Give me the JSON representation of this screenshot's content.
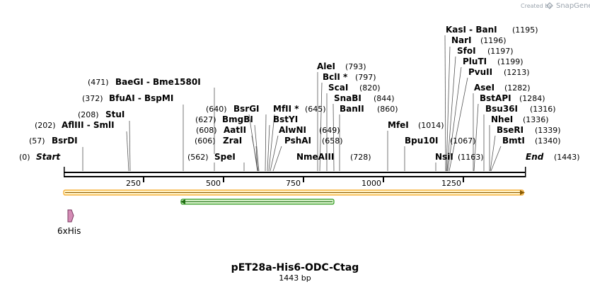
{
  "credit": {
    "created_by": "Created by",
    "brand": "SnapGene"
  },
  "map": {
    "name": "pET28a-His6-ODC-Ctag",
    "length_label": "1443 bp",
    "total_bp": 1443,
    "start_label": "Start",
    "start_pos": "(0)",
    "end_label": "End",
    "end_pos": "(1443)",
    "ticks": [
      "250",
      "500",
      "750",
      "1000",
      "1250"
    ]
  },
  "sites": [
    {
      "name": "BsrDI",
      "pos": "(57)",
      "bp": 57
    },
    {
      "name": "AflIII  - SmlI",
      "pos": "(202)",
      "bp": 202
    },
    {
      "name": "StuI",
      "pos": "(208)",
      "bp": 208
    },
    {
      "name": "BfuAI  - BspMI",
      "pos": "(372)",
      "bp": 372
    },
    {
      "name": "BaeGI  - Bme1580I",
      "pos": "(471)",
      "bp": 471
    },
    {
      "name": "SpeI",
      "pos": "(562)",
      "bp": 562
    },
    {
      "name": "ZraI",
      "pos": "(606)",
      "bp": 606
    },
    {
      "name": "AatII",
      "pos": "(608)",
      "bp": 608
    },
    {
      "name": "BmgBI",
      "pos": "(627)",
      "bp": 627
    },
    {
      "name": "BsrGI",
      "pos": "(640)",
      "bp": 640
    },
    {
      "name": "MfII *",
      "pos": "(645)",
      "bp": 645
    },
    {
      "name": "BstYI",
      "pos": "",
      "bp": 645
    },
    {
      "name": "AlwNI",
      "pos": "(649)",
      "bp": 649
    },
    {
      "name": "PshAI",
      "pos": "(658)",
      "bp": 658
    },
    {
      "name": "NmeAIII",
      "pos": "(728)",
      "bp": 728
    },
    {
      "name": "AleI",
      "pos": "(793)",
      "bp": 793
    },
    {
      "name": "BclI *",
      "pos": "(797)",
      "bp": 797
    },
    {
      "name": "ScaI",
      "pos": "(820)",
      "bp": 820
    },
    {
      "name": "SnaBI",
      "pos": "(844)",
      "bp": 844
    },
    {
      "name": "BanII",
      "pos": "(860)",
      "bp": 860
    },
    {
      "name": "MfeI",
      "pos": "(1014)",
      "bp": 1014
    },
    {
      "name": "Bpu10I",
      "pos": "(1067)",
      "bp": 1067
    },
    {
      "name": "NsiI",
      "pos": "(1163)",
      "bp": 1163
    },
    {
      "name": "KasI  - BanI",
      "pos": "(1195)",
      "bp": 1195
    },
    {
      "name": "NarI",
      "pos": "(1196)",
      "bp": 1196
    },
    {
      "name": "SfoI",
      "pos": "(1197)",
      "bp": 1197
    },
    {
      "name": "PluTI",
      "pos": "(1199)",
      "bp": 1199
    },
    {
      "name": "PvuII",
      "pos": "(1213)",
      "bp": 1213
    },
    {
      "name": "AseI",
      "pos": "(1282)",
      "bp": 1282
    },
    {
      "name": "BstAPI",
      "pos": "(1284)",
      "bp": 1284
    },
    {
      "name": "Bsu36I",
      "pos": "(1316)",
      "bp": 1316
    },
    {
      "name": "NheI",
      "pos": "(1336)",
      "bp": 1336
    },
    {
      "name": "BseRI",
      "pos": "(1339)",
      "bp": 1339
    },
    {
      "name": "BmtI",
      "pos": "(1340)",
      "bp": 1340
    }
  ],
  "features": [
    {
      "name": "6xHis",
      "color": "#d48bb5"
    }
  ],
  "colors": {
    "orange": "#f5a623",
    "green": "#2e9a1e"
  }
}
